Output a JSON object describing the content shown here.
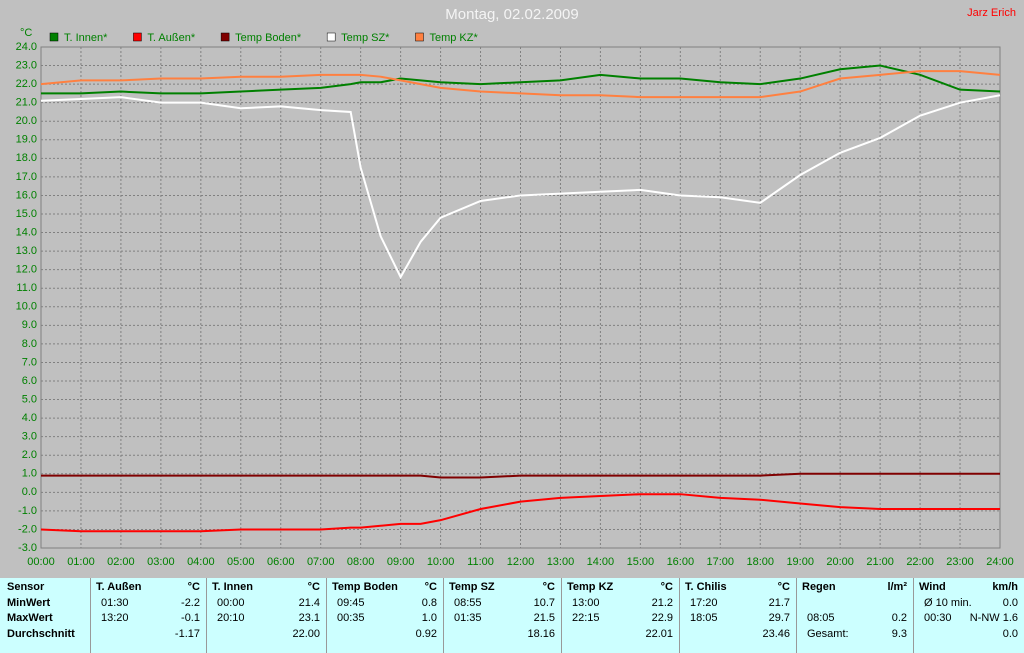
{
  "author": "Jarz Erich",
  "chart_data": {
    "type": "line",
    "title": "Montag, 02.02.2009",
    "y_label": "°C",
    "grid": true,
    "x": [
      0,
      1,
      2,
      3,
      4,
      5,
      6,
      7,
      7.75,
      8,
      8.5,
      9,
      9.5,
      10,
      11,
      12,
      13,
      14,
      15,
      16,
      17,
      18,
      19,
      20,
      21,
      22,
      23,
      24
    ],
    "series": [
      {
        "name": "T. Innen*",
        "color": "#008000",
        "values": [
          21.5,
          21.5,
          21.6,
          21.5,
          21.5,
          21.6,
          21.7,
          21.8,
          22.0,
          22.1,
          22.1,
          22.3,
          22.2,
          22.1,
          22.0,
          22.1,
          22.2,
          22.5,
          22.3,
          22.3,
          22.1,
          22.0,
          22.3,
          22.8,
          23.0,
          22.5,
          21.7,
          21.6
        ]
      },
      {
        "name": "T. Außen*",
        "color": "#ff0000",
        "values": [
          -2.0,
          -2.1,
          -2.1,
          -2.1,
          -2.1,
          -2.0,
          -2.0,
          -2.0,
          -1.9,
          -1.9,
          -1.8,
          -1.7,
          -1.7,
          -1.5,
          -0.9,
          -0.5,
          -0.3,
          -0.2,
          -0.1,
          -0.1,
          -0.3,
          -0.4,
          -0.6,
          -0.8,
          -0.9,
          -0.9,
          -0.9,
          -0.9
        ]
      },
      {
        "name": "Temp Boden*",
        "color": "#800000",
        "values": [
          0.9,
          0.9,
          0.9,
          0.9,
          0.9,
          0.9,
          0.9,
          0.9,
          0.9,
          0.9,
          0.9,
          0.9,
          0.9,
          0.8,
          0.8,
          0.9,
          0.9,
          0.9,
          0.9,
          0.9,
          0.9,
          0.9,
          1.0,
          1.0,
          1.0,
          1.0,
          1.0,
          1.0
        ]
      },
      {
        "name": "Temp SZ*",
        "color": "#ffffff",
        "values": [
          21.1,
          21.2,
          21.3,
          21.0,
          21.0,
          20.7,
          20.8,
          20.6,
          20.5,
          17.5,
          13.8,
          11.6,
          13.5,
          14.8,
          15.7,
          16.0,
          16.1,
          16.2,
          16.3,
          16.0,
          15.9,
          15.6,
          17.1,
          18.3,
          19.1,
          20.3,
          21.0,
          21.4
        ]
      },
      {
        "name": "Temp KZ*",
        "color": "#ff8040",
        "values": [
          22.0,
          22.2,
          22.2,
          22.3,
          22.3,
          22.4,
          22.4,
          22.5,
          22.5,
          22.5,
          22.4,
          22.2,
          22.0,
          21.8,
          21.6,
          21.5,
          21.4,
          21.4,
          21.3,
          21.3,
          21.3,
          21.3,
          21.6,
          22.3,
          22.5,
          22.7,
          22.7,
          22.5
        ]
      }
    ],
    "xlim": [
      0,
      24
    ],
    "xticks": [
      {
        "value": 0,
        "label": "00:00"
      },
      {
        "value": 1,
        "label": "01:00"
      },
      {
        "value": 2,
        "label": "02:00"
      },
      {
        "value": 3,
        "label": "03:00"
      },
      {
        "value": 4,
        "label": "04:00"
      },
      {
        "value": 5,
        "label": "05:00"
      },
      {
        "value": 6,
        "label": "06:00"
      },
      {
        "value": 7,
        "label": "07:00"
      },
      {
        "value": 8,
        "label": "08:00"
      },
      {
        "value": 9,
        "label": "09:00"
      },
      {
        "value": 10,
        "label": "10:00"
      },
      {
        "value": 11,
        "label": "11:00"
      },
      {
        "value": 12,
        "label": "12:00"
      },
      {
        "value": 13,
        "label": "13:00"
      },
      {
        "value": 14,
        "label": "14:00"
      },
      {
        "value": 15,
        "label": "15:00"
      },
      {
        "value": 16,
        "label": "16:00"
      },
      {
        "value": 17,
        "label": "17:00"
      },
      {
        "value": 18,
        "label": "18:00"
      },
      {
        "value": 19,
        "label": "19:00"
      },
      {
        "value": 20,
        "label": "20:00"
      },
      {
        "value": 21,
        "label": "21:00"
      },
      {
        "value": 22,
        "label": "22:00"
      },
      {
        "value": 23,
        "label": "23:00"
      },
      {
        "value": 24,
        "label": "24:00"
      }
    ],
    "ylim": [
      -3,
      24
    ],
    "yticks": [
      {
        "value": -3,
        "label": "-3.0"
      },
      {
        "value": -2,
        "label": "-2.0"
      },
      {
        "value": -1,
        "label": "-1.0"
      },
      {
        "value": 0,
        "label": "0.0"
      },
      {
        "value": 1,
        "label": "1.0"
      },
      {
        "value": 2,
        "label": "2.0"
      },
      {
        "value": 3,
        "label": "3.0"
      },
      {
        "value": 4,
        "label": "4.0"
      },
      {
        "value": 5,
        "label": "5.0"
      },
      {
        "value": 6,
        "label": "6.0"
      },
      {
        "value": 7,
        "label": "7.0"
      },
      {
        "value": 8,
        "label": "8.0"
      },
      {
        "value": 9,
        "label": "9.0"
      },
      {
        "value": 10,
        "label": "10.0"
      },
      {
        "value": 11,
        "label": "11.0"
      },
      {
        "value": 12,
        "label": "12.0"
      },
      {
        "value": 13,
        "label": "13.0"
      },
      {
        "value": 14,
        "label": "14.0"
      },
      {
        "value": 15,
        "label": "15.0"
      },
      {
        "value": 16,
        "label": "16.0"
      },
      {
        "value": 17,
        "label": "17.0"
      },
      {
        "value": 18,
        "label": "18.0"
      },
      {
        "value": 19,
        "label": "19.0"
      },
      {
        "value": 20,
        "label": "20.0"
      },
      {
        "value": 21,
        "label": "21.0"
      },
      {
        "value": 22,
        "label": "22.0"
      },
      {
        "value": 23,
        "label": "23.0"
      },
      {
        "value": 24,
        "label": "24.0"
      }
    ]
  },
  "table": {
    "row_labels": [
      "Sensor",
      "MinWert",
      "MaxWert",
      "Durchschnitt"
    ],
    "sections": [
      {
        "title": "T. Außen",
        "unit": "°C",
        "cells": [
          [
            "01:30",
            "-2.2"
          ],
          [
            "13:20",
            "-0.1"
          ],
          [
            "-1.17"
          ]
        ]
      },
      {
        "title": "T. Innen",
        "unit": "°C",
        "cells": [
          [
            "00:00",
            "21.4"
          ],
          [
            "20:10",
            "23.1"
          ],
          [
            "22.00"
          ]
        ]
      },
      {
        "title": "Temp Boden",
        "unit": "°C",
        "cells": [
          [
            "09:45",
            "0.8"
          ],
          [
            "00:35",
            "1.0"
          ],
          [
            "0.92"
          ]
        ]
      },
      {
        "title": "Temp SZ",
        "unit": "°C",
        "cells": [
          [
            "08:55",
            "10.7"
          ],
          [
            "01:35",
            "21.5"
          ],
          [
            "18.16"
          ]
        ]
      },
      {
        "title": "Temp KZ",
        "unit": "°C",
        "cells": [
          [
            "13:00",
            "21.2"
          ],
          [
            "22:15",
            "22.9"
          ],
          [
            "22.01"
          ]
        ]
      },
      {
        "title": "T. Chilis",
        "unit": "°C",
        "cells": [
          [
            "17:20",
            "21.7"
          ],
          [
            "18:05",
            "29.7"
          ],
          [
            "23.46"
          ]
        ]
      },
      {
        "title": "Regen",
        "unit": "l/m²",
        "cells": [
          [],
          [
            "08:05",
            "0.2"
          ],
          [
            "Gesamt:",
            "9.3"
          ]
        ]
      },
      {
        "title": "Wind",
        "unit": "km/h",
        "cells": [
          [
            "Ø 10 min.",
            "0.0"
          ],
          [
            "00:30",
            "N-NW 1.6"
          ],
          [
            "0.0"
          ]
        ]
      }
    ]
  }
}
